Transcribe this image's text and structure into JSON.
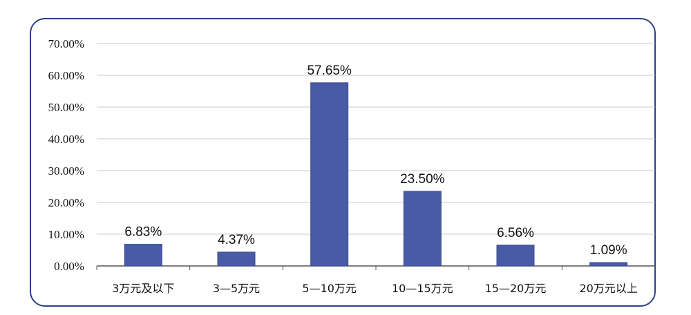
{
  "chart_data": {
    "type": "bar",
    "title": "",
    "xlabel": "",
    "ylabel": "",
    "categories": [
      "3万元及以下",
      "3—5万元",
      "5—10万元",
      "10—15万元",
      "15—20万元",
      "20万元以上"
    ],
    "values": [
      6.83,
      4.37,
      57.65,
      23.5,
      6.56,
      1.09
    ],
    "value_labels": [
      "6.83%",
      "4.37%",
      "57.65%",
      "23.50%",
      "6.56%",
      "1.09%"
    ],
    "ylim": [
      0,
      70
    ],
    "y_ticks": [
      0,
      10,
      20,
      30,
      40,
      50,
      60,
      70
    ],
    "y_tick_labels": [
      "0.00%",
      "10.00%",
      "20.00%",
      "30.00%",
      "40.00%",
      "50.00%",
      "60.00%",
      "70.00%"
    ],
    "grid": true,
    "legend": "none"
  },
  "colors": {
    "bar": "#4a5ba6",
    "bar_edge": "#3b4a8f",
    "grid": "#c8c8c8",
    "axis": "#555555",
    "frame": "#2c3f8a"
  }
}
